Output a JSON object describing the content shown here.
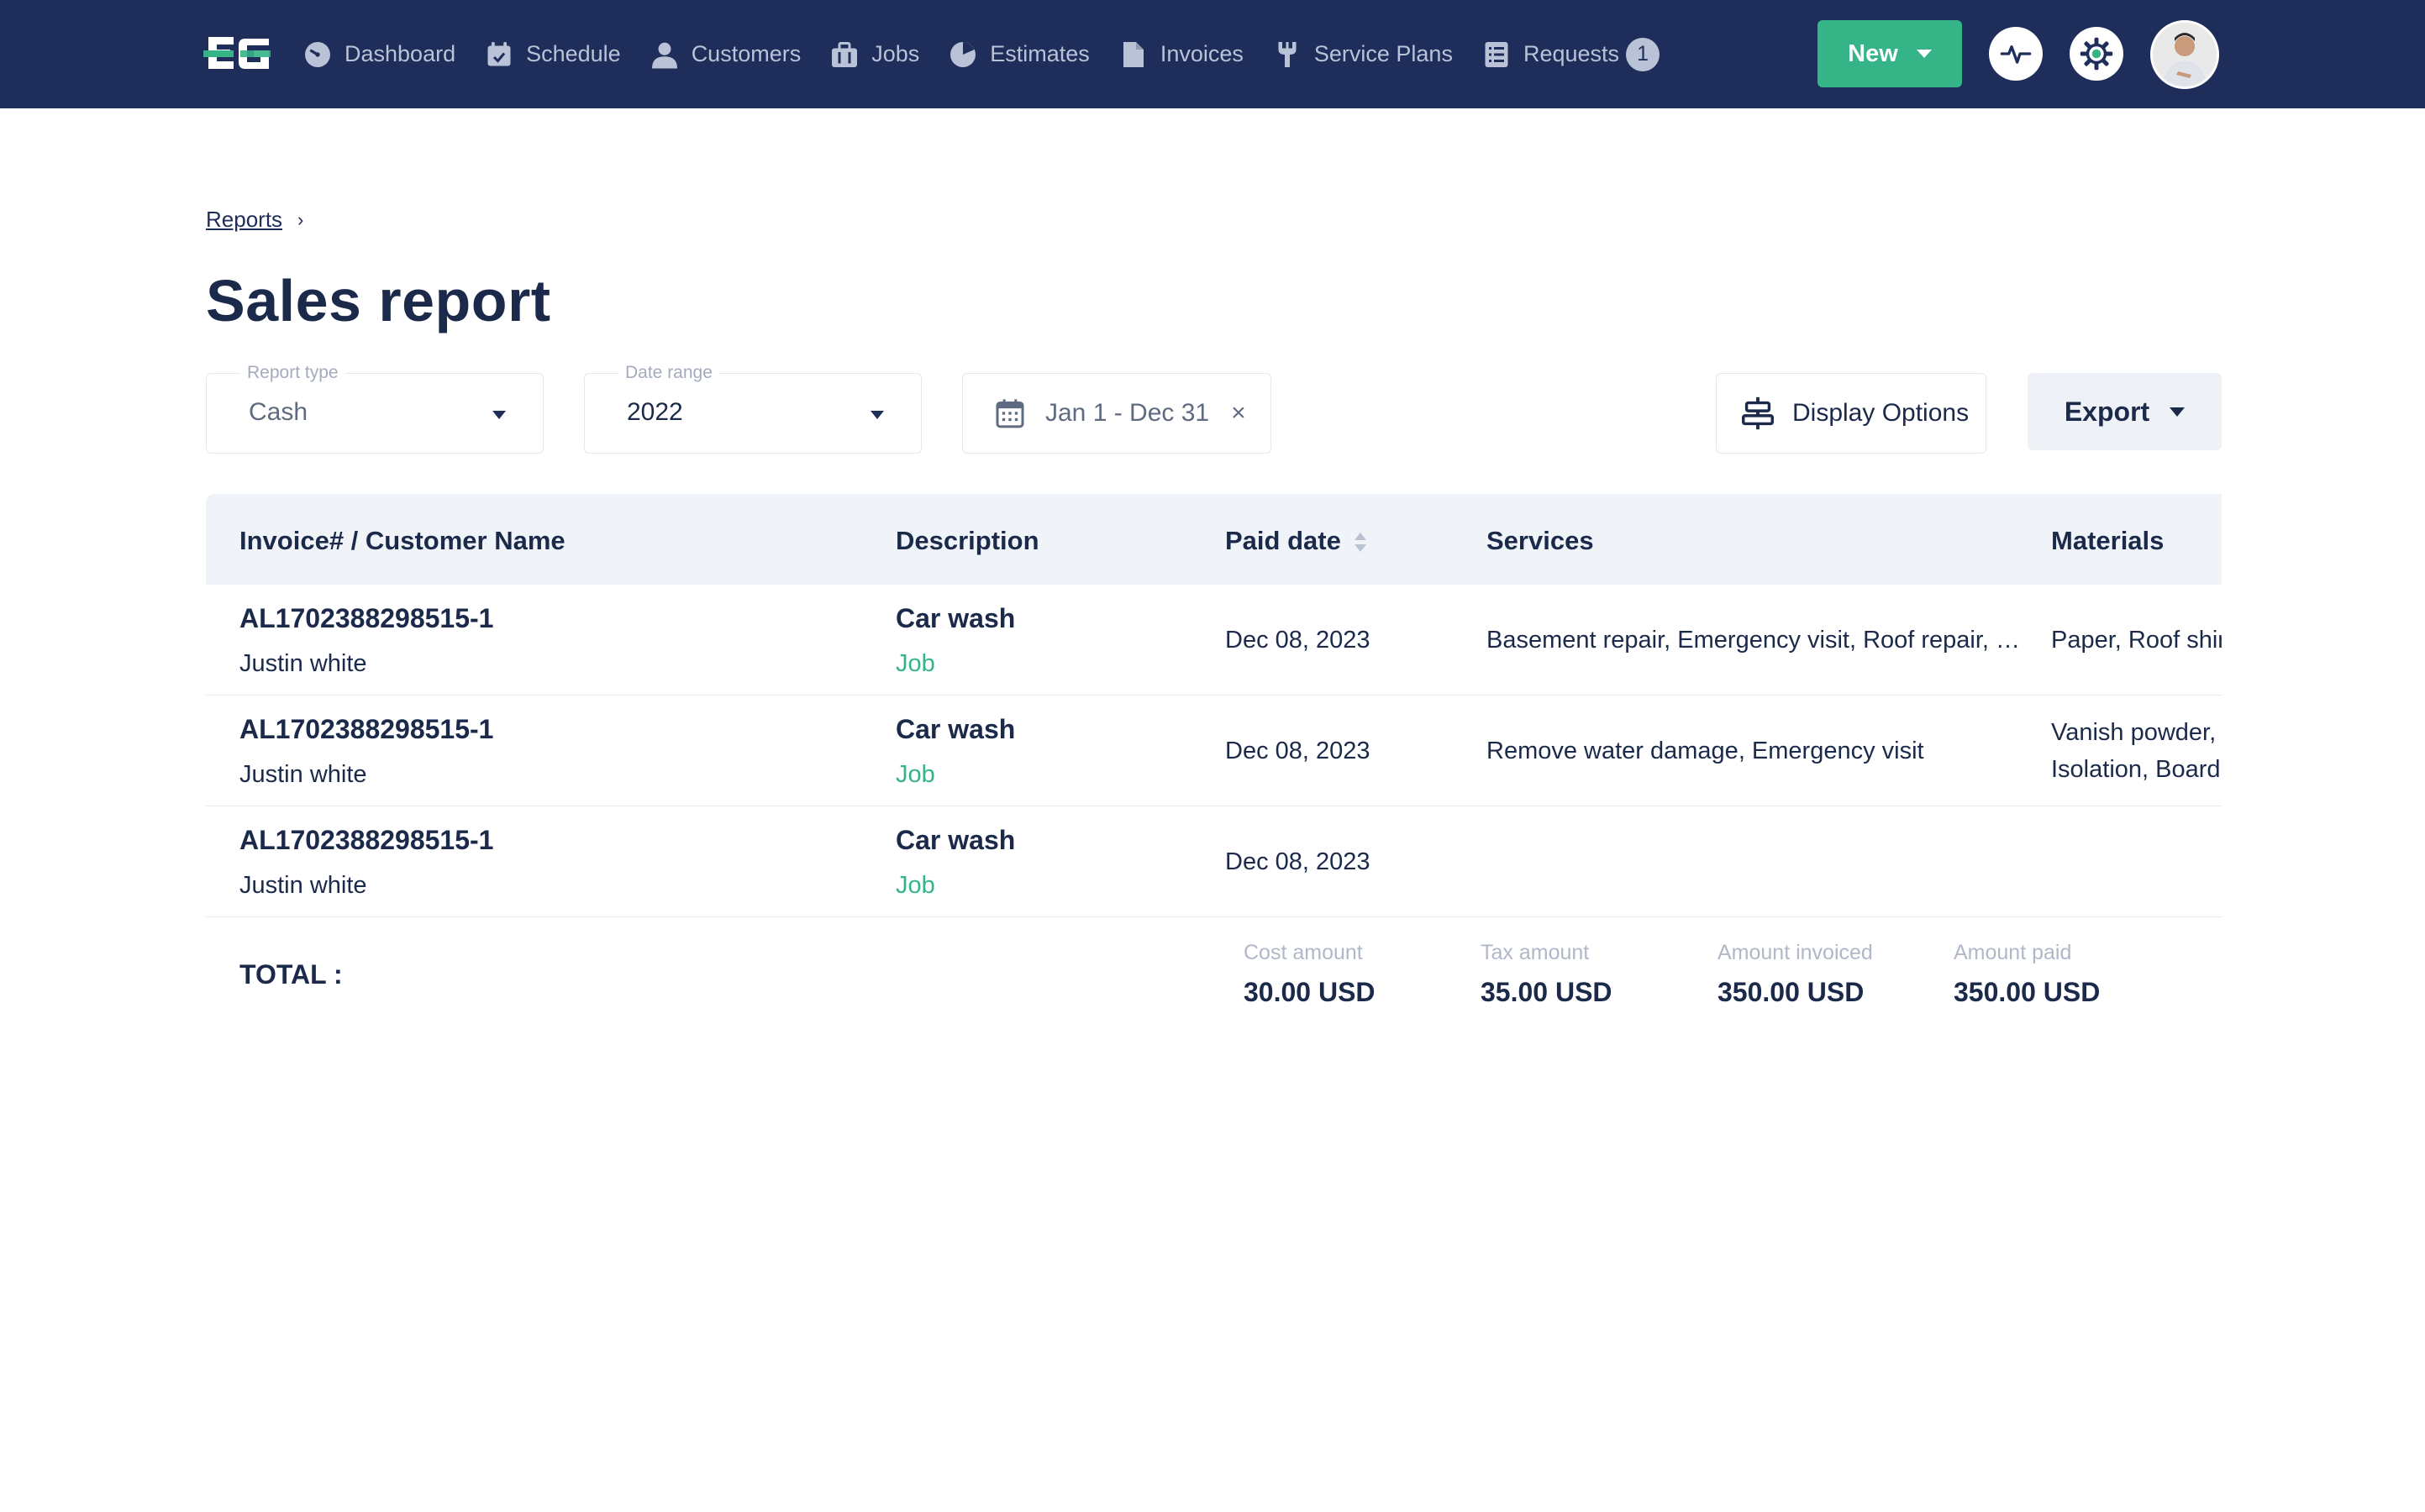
{
  "nav": {
    "items": [
      {
        "label": "Dashboard"
      },
      {
        "label": "Schedule"
      },
      {
        "label": "Customers"
      },
      {
        "label": "Jobs"
      },
      {
        "label": "Estimates"
      },
      {
        "label": "Invoices"
      },
      {
        "label": "Service Plans"
      },
      {
        "label": "Requests",
        "badge": "1"
      }
    ],
    "new_label": "New"
  },
  "colors": {
    "navbar": "#1e2d59",
    "accent": "#34b487",
    "nav_text": "#b9c2d6"
  },
  "breadcrumb": {
    "root": "Reports"
  },
  "page_title": "Sales report",
  "filters": {
    "report_type": {
      "label": "Report type",
      "value": "Cash"
    },
    "date_range": {
      "label": "Date range",
      "value": "2022"
    },
    "dates": "Jan 1 - Dec 31",
    "clear": "×"
  },
  "actions": {
    "display_options": "Display Options",
    "export": "Export"
  },
  "table": {
    "columns": [
      "Invoice# / Customer Name",
      "Description",
      "Paid date",
      "Services",
      "Materials"
    ],
    "rows": [
      {
        "invoice": "AL1702388298515-1",
        "customer": "Justin white",
        "description": "Car wash",
        "type": "Job",
        "paid_date": "Dec 08, 2023",
        "services": "Basement repair, Emergency visit, Roof repair, Gutter cleaning",
        "materials": "Paper, Roof shingles"
      },
      {
        "invoice": "AL1702388298515-1",
        "customer": "Justin white",
        "description": "Car wash",
        "type": "Job",
        "paid_date": "Dec 08, 2023",
        "services": "Remove water damage, Emergency visit",
        "materials": "Vanish powder, Isolation, Board"
      },
      {
        "invoice": "AL1702388298515-1",
        "customer": "Justin white",
        "description": "Car wash",
        "type": "Job",
        "paid_date": "Dec 08, 2023",
        "services": "",
        "materials": ""
      }
    ]
  },
  "totals": {
    "label": "TOTAL :",
    "cost": {
      "label": "Cost amount",
      "value": "30.00 USD"
    },
    "tax": {
      "label": "Tax amount",
      "value": "35.00 USD"
    },
    "invoiced": {
      "label": "Amount invoiced",
      "value": "350.00 USD"
    },
    "paid": {
      "label": "Amount paid",
      "value": "350.00 USD"
    }
  }
}
